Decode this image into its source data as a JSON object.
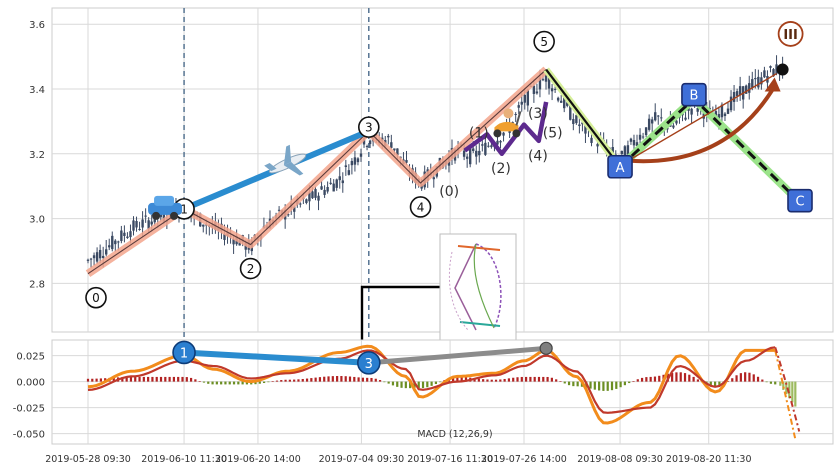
{
  "chart_data": [
    {
      "type": "candlestick",
      "ylim": [
        2.65,
        3.65
      ],
      "yticks": [
        "2.8",
        "3.0",
        "3.2",
        "3.4",
        "3.6"
      ],
      "grid": true,
      "price_series": [
        [
          "2019-05-28",
          2.87
        ],
        [
          "2019-05-30",
          2.9
        ],
        [
          "2019-06-03",
          2.97
        ],
        [
          "2019-06-06",
          3.0
        ],
        [
          "2019-06-10",
          3.03
        ],
        [
          "2019-06-12",
          3.0
        ],
        [
          "2019-06-14",
          2.97
        ],
        [
          "2019-06-17",
          2.94
        ],
        [
          "2019-06-19",
          2.91
        ],
        [
          "2019-06-21",
          2.98
        ],
        [
          "2019-06-24",
          3.02
        ],
        [
          "2019-06-27",
          3.06
        ],
        [
          "2019-07-01",
          3.12
        ],
        [
          "2019-07-03",
          3.18
        ],
        [
          "2019-07-05",
          3.25
        ],
        [
          "2019-07-08",
          3.24
        ],
        [
          "2019-07-10",
          3.16
        ],
        [
          "2019-07-12",
          3.11
        ],
        [
          "2019-07-15",
          3.17
        ],
        [
          "2019-07-17",
          3.21
        ],
        [
          "2019-07-19",
          3.19
        ],
        [
          "2019-07-22",
          3.24
        ],
        [
          "2019-07-24",
          3.28
        ],
        [
          "2019-07-26",
          3.36
        ],
        [
          "2019-07-29",
          3.44
        ],
        [
          "2019-07-31",
          3.37
        ],
        [
          "2019-08-02",
          3.3
        ],
        [
          "2019-08-05",
          3.24
        ],
        [
          "2019-08-08",
          3.18
        ],
        [
          "2019-08-10",
          3.24
        ],
        [
          "2019-08-13",
          3.31
        ],
        [
          "2019-08-15",
          3.28
        ],
        [
          "2019-08-18",
          3.35
        ],
        [
          "2019-08-21",
          3.31
        ],
        [
          "2019-08-24",
          3.38
        ],
        [
          "2019-08-27",
          3.43
        ],
        [
          "2019-08-29",
          3.46
        ]
      ],
      "wave_points": [
        {
          "label": "0",
          "x": "2019-05-28",
          "y": 2.83
        },
        {
          "label": "1",
          "x": "2019-06-10",
          "y": 3.03
        },
        {
          "label": "2",
          "x": "2019-06-19",
          "y": 2.92
        },
        {
          "label": "3",
          "x": "2019-07-05",
          "y": 3.27
        },
        {
          "label": "4",
          "x": "2019-07-12",
          "y": 3.11
        },
        {
          "label": "5",
          "x": "2019-07-29",
          "y": 3.46
        },
        {
          "label": "A",
          "x": "2019-08-08",
          "y": 3.16
        },
        {
          "label": "B",
          "x": "2019-08-18",
          "y": 3.37
        },
        {
          "label": "C",
          "x": "2019-08-31",
          "y": 3.08
        }
      ],
      "sub_wave_labels": [
        "(0)",
        "(1)",
        "(2)",
        "(3)",
        "(4)",
        "(5)"
      ],
      "end_marker": "III"
    },
    {
      "type": "macd",
      "title": "MACD (12,26,9)",
      "ylim": [
        -0.06,
        0.04
      ],
      "yticks": [
        "0.025",
        "0.000",
        "-0.025",
        "-0.050"
      ],
      "x_ticks": [
        "2019-05-28 09:30",
        "2019-06-10 11:30",
        "2019-06-20 14:00",
        "2019-07-04 09:30",
        "2019-07-16 11:30",
        "2019-07-26 14:00",
        "2019-08-08 09:30",
        "2019-08-20 11:30"
      ],
      "macd_series": [
        [
          "2019-05-28",
          -0.005
        ],
        [
          "2019-06-03",
          0.01
        ],
        [
          "2019-06-10",
          0.025
        ],
        [
          "2019-06-14",
          0.012
        ],
        [
          "2019-06-19",
          0.0
        ],
        [
          "2019-06-24",
          0.01
        ],
        [
          "2019-07-01",
          0.028
        ],
        [
          "2019-07-05",
          0.034
        ],
        [
          "2019-07-10",
          0.005
        ],
        [
          "2019-07-12",
          -0.015
        ],
        [
          "2019-07-17",
          0.005
        ],
        [
          "2019-07-22",
          0.008
        ],
        [
          "2019-07-26",
          0.02
        ],
        [
          "2019-07-29",
          0.03
        ],
        [
          "2019-08-02",
          0.005
        ],
        [
          "2019-08-06",
          -0.04
        ],
        [
          "2019-08-12",
          -0.02
        ],
        [
          "2019-08-16",
          0.025
        ],
        [
          "2019-08-21",
          -0.01
        ],
        [
          "2019-08-25",
          0.03
        ],
        [
          "2019-08-29",
          0.03
        ]
      ],
      "signal_series": [
        [
          "2019-05-28",
          -0.008
        ],
        [
          "2019-06-03",
          0.005
        ],
        [
          "2019-06-10",
          0.02
        ],
        [
          "2019-06-14",
          0.015
        ],
        [
          "2019-06-19",
          0.003
        ],
        [
          "2019-06-24",
          0.008
        ],
        [
          "2019-07-01",
          0.022
        ],
        [
          "2019-07-05",
          0.03
        ],
        [
          "2019-07-10",
          0.012
        ],
        [
          "2019-07-12",
          -0.008
        ],
        [
          "2019-07-17",
          0.0
        ],
        [
          "2019-07-22",
          0.006
        ],
        [
          "2019-07-26",
          0.015
        ],
        [
          "2019-07-29",
          0.025
        ],
        [
          "2019-08-02",
          0.01
        ],
        [
          "2019-08-06",
          -0.03
        ],
        [
          "2019-08-12",
          -0.025
        ],
        [
          "2019-08-16",
          0.015
        ],
        [
          "2019-08-21",
          -0.005
        ],
        [
          "2019-08-25",
          0.02
        ],
        [
          "2019-08-29",
          0.033
        ]
      ],
      "wave_points": [
        {
          "label": "1",
          "x": "2019-06-10",
          "y": 0.028
        },
        {
          "label": "3",
          "x": "2019-07-05",
          "y": 0.018
        },
        {
          "label": "",
          "x": "2019-07-29",
          "y": 0.032
        }
      ]
    }
  ],
  "colors": {
    "candle": "#3b4a63",
    "grid": "#d9d9d9",
    "wave_band": "#f3a48c",
    "arrow_blue": "#2a8ccf",
    "purple": "#5d2a8e",
    "green_band": "#9be38a",
    "brown_arc": "#a5401a",
    "macd_line": "#f28c1c",
    "signal_line": "#c0392b",
    "hist_pos": "#b22222",
    "hist_neg": "#6b8e23",
    "label_box": "#3f6fd8"
  },
  "icons": [
    "car-icon",
    "airplane-icon",
    "scooter-icon"
  ]
}
